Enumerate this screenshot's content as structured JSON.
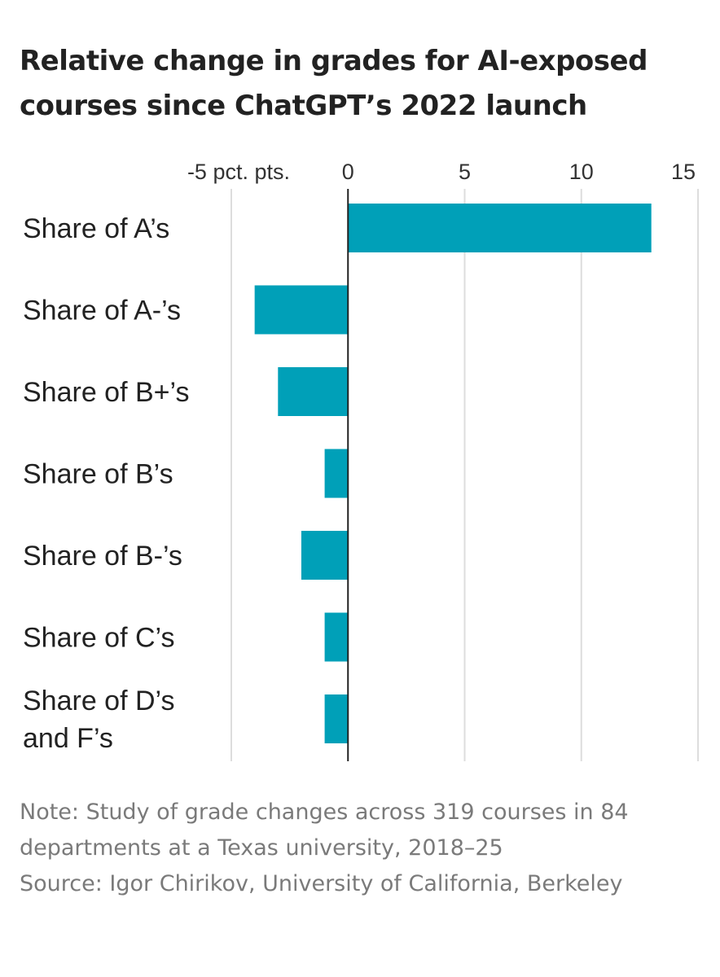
{
  "chart_data": {
    "type": "bar",
    "orientation": "horizontal",
    "title": "Relative change in grades for AI-exposed courses since ChatGPT’s 2022 launch",
    "categories": [
      "Share of A’s",
      "Share of A-’s",
      "Share of B+’s",
      "Share of B’s",
      "Share of B-’s",
      "Share of C’s",
      "Share of D’s and F’s"
    ],
    "category_lines": [
      [
        "Share of A’s"
      ],
      [
        "Share of A-’s"
      ],
      [
        "Share of B+’s"
      ],
      [
        "Share of B’s"
      ],
      [
        "Share of B-’s"
      ],
      [
        "Share of C’s"
      ],
      [
        "Share of D’s",
        "and F’s"
      ]
    ],
    "values": [
      13,
      -4,
      -3,
      -1,
      -2,
      -1,
      -1
    ],
    "xlim": [
      -5,
      15
    ],
    "xticks": [
      -5,
      0,
      5,
      10,
      15
    ],
    "xtick_labels": [
      "-5 pct. pts.",
      "0",
      "5",
      "10",
      "15"
    ],
    "grid": true,
    "bar_color": "#00A0B8",
    "grid_color": "#dddddd",
    "zero_line_color": "#222222"
  },
  "footer": {
    "note": "Note: Study of grade changes across 319 courses in 84 departments at a Texas university, 2018–25",
    "source": "Source: Igor Chirikov, University of California, Berkeley"
  }
}
